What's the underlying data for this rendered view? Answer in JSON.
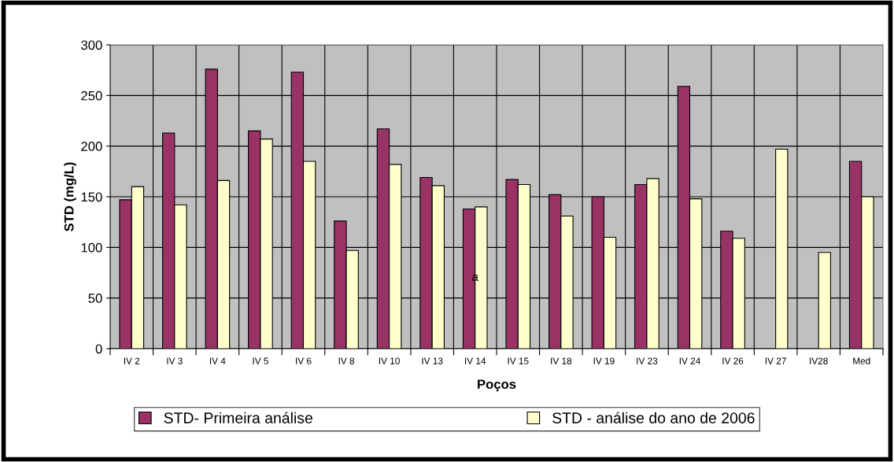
{
  "chart_data": {
    "type": "bar",
    "xlabel": "Poços",
    "ylabel": "STD (mg/L)",
    "categories": [
      "IV 2",
      "IV 3",
      "IV 4",
      "IV 5",
      "IV 6",
      "IV 8",
      "IV 10",
      "IV 13",
      "IV 14",
      "IV 15",
      "IV 18",
      "IV 19",
      "IV 23",
      "IV 24",
      "IV 26",
      "IV 27",
      "IV28",
      "Med"
    ],
    "series": [
      {
        "name": "STD- Primeira análise",
        "color": "#993366",
        "values": [
          147,
          213,
          276,
          215,
          273,
          126,
          217,
          169,
          138,
          167,
          152,
          150,
          162,
          259,
          116,
          null,
          null,
          185
        ]
      },
      {
        "name": "STD - análise do ano de 2006",
        "color": "#ffffcc",
        "values": [
          160,
          142,
          166,
          207,
          185,
          97,
          182,
          161,
          140,
          162,
          131,
          110,
          168,
          148,
          109,
          197,
          95,
          150
        ]
      }
    ],
    "ylim": [
      0,
      300
    ],
    "yticks": [
      0,
      50,
      100,
      150,
      200,
      250,
      300
    ],
    "grid": true,
    "legend": "bottom",
    "annotations": [
      {
        "text": "a",
        "x": "IV 14",
        "y": 70
      }
    ]
  }
}
